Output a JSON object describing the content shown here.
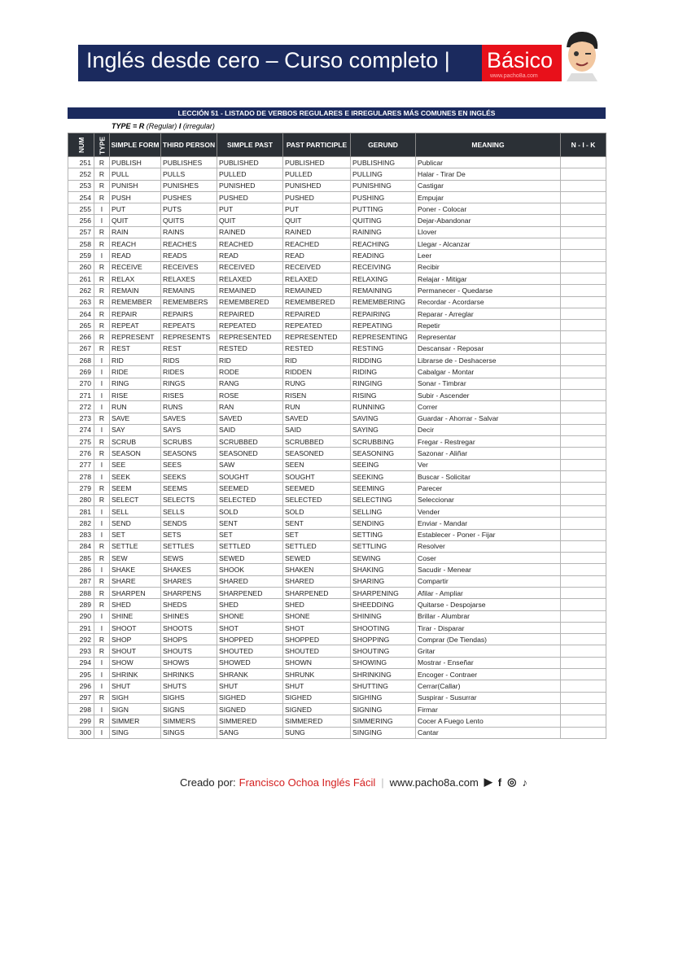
{
  "banner": {
    "title": "Inglés desde cero – Curso completo |",
    "level": "Básico",
    "url": "www.pacho8a.com"
  },
  "lesson_title": "LECCIÓN 51 - LISTADO DE VERBOS REGULARES E IRREGULARES MÁS COMUNES EN INGLÉS",
  "type_legend": {
    "label": "TYPE = R",
    "regular": "(Regular)",
    "i": "I",
    "irregular": "(irregular)"
  },
  "columns": [
    "NUM",
    "TYPE",
    "SIMPLE FORM",
    "THIRD PERSON",
    "SIMPLE PAST",
    "PAST PARTICIPLE",
    "GERUND",
    "MEANING",
    "N - I - K"
  ],
  "rows": [
    [
      "251",
      "R",
      "PUBLISH",
      "PUBLISHES",
      "PUBLISHED",
      "PUBLISHED",
      "PUBLISHING",
      "Publicar"
    ],
    [
      "252",
      "R",
      "PULL",
      "PULLS",
      "PULLED",
      "PULLED",
      "PULLING",
      "Halar - Tirar De"
    ],
    [
      "253",
      "R",
      "PUNISH",
      "PUNISHES",
      "PUNISHED",
      "PUNISHED",
      "PUNISHING",
      "Castigar"
    ],
    [
      "254",
      "R",
      "PUSH",
      "PUSHES",
      "PUSHED",
      "PUSHED",
      "PUSHING",
      "Empujar"
    ],
    [
      "255",
      "I",
      "PUT",
      "PUTS",
      "PUT",
      "PUT",
      "PUTTING",
      "Poner - Colocar"
    ],
    [
      "256",
      "I",
      "QUIT",
      "QUITS",
      "QUIT",
      "QUIT",
      "QUITING",
      "Dejar-Abandonar"
    ],
    [
      "257",
      "R",
      "RAIN",
      "RAINS",
      "RAINED",
      "RAINED",
      "RAINING",
      "Llover"
    ],
    [
      "258",
      "R",
      "REACH",
      "REACHES",
      "REACHED",
      "REACHED",
      "REACHING",
      "Llegar - Alcanzar"
    ],
    [
      "259",
      "I",
      "READ",
      "READS",
      "READ",
      "READ",
      "READING",
      "Leer"
    ],
    [
      "260",
      "R",
      "RECEIVE",
      "RECEIVES",
      "RECEIVED",
      "RECEIVED",
      "RECEIVING",
      "Recibir"
    ],
    [
      "261",
      "R",
      "RELAX",
      "RELAXES",
      "RELAXED",
      "RELAXED",
      "RELAXING",
      "Relajar - Mitigar"
    ],
    [
      "262",
      "R",
      "REMAIN",
      "REMAINS",
      "REMAINED",
      "REMAINED",
      "REMAINING",
      "Permanecer - Quedarse"
    ],
    [
      "263",
      "R",
      "REMEMBER",
      "REMEMBERS",
      "REMEMBERED",
      "REMEMBERED",
      "REMEMBERING",
      "Recordar -  Acordarse"
    ],
    [
      "264",
      "R",
      "REPAIR",
      "REPAIRS",
      "REPAIRED",
      "REPAIRED",
      "REPAIRING",
      "Reparar - Arreglar"
    ],
    [
      "265",
      "R",
      "REPEAT",
      "REPEATS",
      "REPEATED",
      "REPEATED",
      "REPEATING",
      "Repetir"
    ],
    [
      "266",
      "R",
      "REPRESENT",
      "REPRESENTS",
      "REPRESENTED",
      "REPRESENTED",
      "REPRESENTING",
      "Representar"
    ],
    [
      "267",
      "R",
      "REST",
      "REST",
      "RESTED",
      "RESTED",
      "RESTING",
      "Descansar - Reposar"
    ],
    [
      "268",
      "I",
      "RID",
      "RIDS",
      "RID",
      "RID",
      "RIDDING",
      "Librarse de - Deshacerse"
    ],
    [
      "269",
      "I",
      "RIDE",
      "RIDES",
      "RODE",
      "RIDDEN",
      "RIDING",
      "Cabalgar - Montar"
    ],
    [
      "270",
      "I",
      "RING",
      "RINGS",
      "RANG",
      "RUNG",
      "RINGING",
      "Sonar - Timbrar"
    ],
    [
      "271",
      "I",
      "RISE",
      "RISES",
      "ROSE",
      "RISEN",
      "RISING",
      "Subir - Ascender"
    ],
    [
      "272",
      "I",
      "RUN",
      "RUNS",
      "RAN",
      "RUN",
      "RUNNING",
      "Correr"
    ],
    [
      "273",
      "R",
      "SAVE",
      "SAVES",
      "SAVED",
      "SAVED",
      "SAVING",
      "Guardar - Ahorrar - Salvar"
    ],
    [
      "274",
      "I",
      "SAY",
      "SAYS",
      "SAID",
      "SAID",
      "SAYING",
      "Decir"
    ],
    [
      "275",
      "R",
      "SCRUB",
      "SCRUBS",
      "SCRUBBED",
      "SCRUBBED",
      "SCRUBBING",
      "Fregar -  Restregar"
    ],
    [
      "276",
      "R",
      "SEASON",
      "SEASONS",
      "SEASONED",
      "SEASONED",
      "SEASONING",
      "Sazonar - Aliñar"
    ],
    [
      "277",
      "I",
      "SEE",
      "SEES",
      "SAW",
      "SEEN",
      "SEEING",
      "Ver"
    ],
    [
      "278",
      "I",
      "SEEK",
      "SEEKS",
      "SOUGHT",
      "SOUGHT",
      "SEEKING",
      "Buscar - Solicitar"
    ],
    [
      "279",
      "R",
      "SEEM",
      "SEEMS",
      "SEEMED",
      "SEEMED",
      "SEEMING",
      "Parecer"
    ],
    [
      "280",
      "R",
      "SELECT",
      "SELECTS",
      "SELECTED",
      "SELECTED",
      "SELECTING",
      "Seleccionar"
    ],
    [
      "281",
      "I",
      "SELL",
      "SELLS",
      "SOLD",
      "SOLD",
      "SELLING",
      "Vender"
    ],
    [
      "282",
      "I",
      "SEND",
      "SENDS",
      "SENT",
      "SENT",
      "SENDING",
      "Enviar - Mandar"
    ],
    [
      "283",
      "I",
      "SET",
      "SETS",
      "SET",
      "SET",
      "SETTING",
      "Establecer - Poner - Fijar"
    ],
    [
      "284",
      "R",
      "SETTLE",
      "SETTLES",
      "SETTLED",
      "SETTLED",
      "SETTLING",
      "Resolver"
    ],
    [
      "285",
      "R",
      "SEW",
      "SEWS",
      "SEWED",
      "SEWED",
      "SEWING",
      "Coser"
    ],
    [
      "286",
      "I",
      "SHAKE",
      "SHAKES",
      "SHOOK",
      "SHAKEN",
      "SHAKING",
      "Sacudir - Menear"
    ],
    [
      "287",
      "R",
      "SHARE",
      "SHARES",
      "SHARED",
      "SHARED",
      "SHARING",
      "Compartir"
    ],
    [
      "288",
      "R",
      "SHARPEN",
      "SHARPENS",
      "SHARPENED",
      "SHARPENED",
      "SHARPENING",
      "Afilar - Ampliar"
    ],
    [
      "289",
      "R",
      "SHED",
      "SHEDS",
      "SHED",
      "SHED",
      "SHEEDDING",
      "Quitarse - Despojarse"
    ],
    [
      "290",
      "I",
      "SHINE",
      "SHINES",
      "SHONE",
      "SHONE",
      "SHINING",
      "Brillar - Alumbrar"
    ],
    [
      "291",
      "I",
      "SHOOT",
      "SHOOTS",
      "SHOT",
      "SHOT",
      "SHOOTING",
      "Tirar - Disparar"
    ],
    [
      "292",
      "R",
      "SHOP",
      "SHOPS",
      "SHOPPED",
      "SHOPPED",
      "SHOPPING",
      "Comprar (De Tiendas)"
    ],
    [
      "293",
      "R",
      "SHOUT",
      "SHOUTS",
      "SHOUTED",
      "SHOUTED",
      "SHOUTING",
      "Gritar"
    ],
    [
      "294",
      "I",
      "SHOW",
      "SHOWS",
      "SHOWED",
      "SHOWN",
      "SHOWING",
      "Mostrar - Enseñar"
    ],
    [
      "295",
      "I",
      "SHRINK",
      "SHRINKS",
      "SHRANK",
      "SHRUNK",
      "SHRINKING",
      "Encoger - Contraer"
    ],
    [
      "296",
      "I",
      "SHUT",
      "SHUTS",
      "SHUT",
      "SHUT",
      "SHUTTING",
      "Cerrar(Callar)"
    ],
    [
      "297",
      "R",
      "SIGH",
      "SIGHS",
      "SIGHED",
      "SIGHED",
      "SIGHING",
      "Suspirar - Susurrar"
    ],
    [
      "298",
      "I",
      "SIGN",
      "SIGNS",
      "SIGNED",
      "SIGNED",
      "SIGNING",
      "Firmar"
    ],
    [
      "299",
      "R",
      "SIMMER",
      "SIMMERS",
      "SIMMERED",
      "SIMMERED",
      "SIMMERING",
      "Cocer A Fuego Lento"
    ],
    [
      "300",
      "I",
      "SING",
      "SINGS",
      "SANG",
      "SUNG",
      "SINGING",
      "Cantar"
    ]
  ],
  "footer": {
    "created_by": "Creado por:",
    "author": "Francisco Ochoa Inglés Fácil",
    "website": "www.pacho8a.com",
    "icons": [
      "youtube-icon",
      "facebook-icon",
      "instagram-icon",
      "tiktok-icon"
    ]
  },
  "colors": {
    "navy": "#1b2a5e",
    "red": "#e8101a",
    "header": "#2b3036"
  }
}
